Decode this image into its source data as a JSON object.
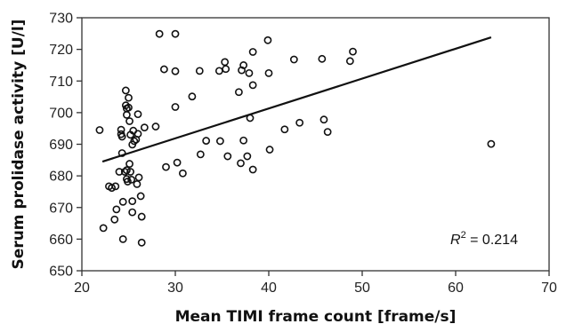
{
  "chart_data": {
    "type": "scatter",
    "title": "",
    "xlabel": "Mean TIMI frame count [frame/s]",
    "ylabel": "Serum prolidase activity [U/l]",
    "xlim": [
      20,
      70
    ],
    "ylim": [
      650,
      730
    ],
    "xticks": [
      20,
      30,
      40,
      50,
      60,
      70
    ],
    "yticks": [
      650,
      660,
      670,
      680,
      690,
      700,
      710,
      720,
      730
    ],
    "grid": false,
    "legend": "none",
    "annotation": {
      "r_symbol": "R",
      "r_superscript": "2",
      "text": " = 0.214"
    },
    "trendline": {
      "x": [
        22.2,
        63.8
      ],
      "y": [
        684.5,
        723.8
      ]
    },
    "series": [
      {
        "marker": "open-circle",
        "points": [
          [
            21.9,
            694.5
          ],
          [
            22.3,
            663.5
          ],
          [
            22.9,
            676.7
          ],
          [
            23.2,
            676.2
          ],
          [
            23.6,
            676.7
          ],
          [
            23.5,
            666.2
          ],
          [
            23.7,
            669.4
          ],
          [
            24.0,
            681.3
          ],
          [
            24.2,
            694.6
          ],
          [
            24.2,
            693.2
          ],
          [
            24.3,
            692.4
          ],
          [
            24.3,
            687.2
          ],
          [
            24.4,
            671.8
          ],
          [
            24.4,
            660.0
          ],
          [
            24.6,
            681.3
          ],
          [
            24.7,
            707.0
          ],
          [
            24.7,
            702.3
          ],
          [
            24.8,
            701.3
          ],
          [
            24.8,
            699.3
          ],
          [
            24.8,
            679.0
          ],
          [
            24.8,
            681.8
          ],
          [
            24.9,
            678.2
          ],
          [
            25.0,
            704.7
          ],
          [
            25.0,
            701.6
          ],
          [
            25.1,
            697.3
          ],
          [
            25.1,
            683.8
          ],
          [
            25.2,
            693.0
          ],
          [
            25.2,
            681.3
          ],
          [
            25.3,
            678.8
          ],
          [
            25.4,
            672.0
          ],
          [
            25.4,
            668.5
          ],
          [
            25.4,
            689.9
          ],
          [
            25.5,
            694.3
          ],
          [
            25.6,
            691.0
          ],
          [
            25.8,
            691.5
          ],
          [
            25.9,
            677.4
          ],
          [
            26.0,
            693.3
          ],
          [
            26.0,
            699.5
          ],
          [
            26.1,
            679.5
          ],
          [
            26.3,
            673.6
          ],
          [
            26.4,
            667.1
          ],
          [
            26.4,
            658.9
          ],
          [
            26.7,
            695.3
          ],
          [
            27.9,
            695.6
          ],
          [
            28.3,
            724.9
          ],
          [
            28.8,
            713.7
          ],
          [
            29.0,
            682.8
          ],
          [
            30.0,
            724.9
          ],
          [
            30.0,
            713.1
          ],
          [
            30.0,
            701.8
          ],
          [
            30.2,
            684.2
          ],
          [
            30.8,
            680.8
          ],
          [
            31.8,
            705.1
          ],
          [
            32.6,
            713.2
          ],
          [
            32.7,
            686.8
          ],
          [
            33.3,
            691.1
          ],
          [
            34.7,
            713.2
          ],
          [
            34.8,
            691.0
          ],
          [
            35.3,
            716.0
          ],
          [
            35.4,
            713.8
          ],
          [
            35.6,
            686.2
          ],
          [
            36.8,
            706.5
          ],
          [
            37.0,
            684.0
          ],
          [
            37.1,
            713.4
          ],
          [
            37.3,
            715.0
          ],
          [
            37.3,
            691.2
          ],
          [
            37.7,
            686.2
          ],
          [
            37.9,
            712.5
          ],
          [
            38.0,
            698.3
          ],
          [
            38.3,
            719.2
          ],
          [
            38.3,
            708.7
          ],
          [
            38.3,
            682.0
          ],
          [
            39.9,
            722.9
          ],
          [
            40.0,
            712.5
          ],
          [
            40.1,
            688.3
          ],
          [
            41.7,
            694.7
          ],
          [
            42.7,
            716.8
          ],
          [
            43.3,
            696.8
          ],
          [
            45.7,
            717.0
          ],
          [
            45.9,
            697.8
          ],
          [
            46.3,
            693.9
          ],
          [
            48.7,
            716.3
          ],
          [
            49.0,
            719.3
          ],
          [
            63.8,
            690.1
          ]
        ]
      }
    ]
  }
}
